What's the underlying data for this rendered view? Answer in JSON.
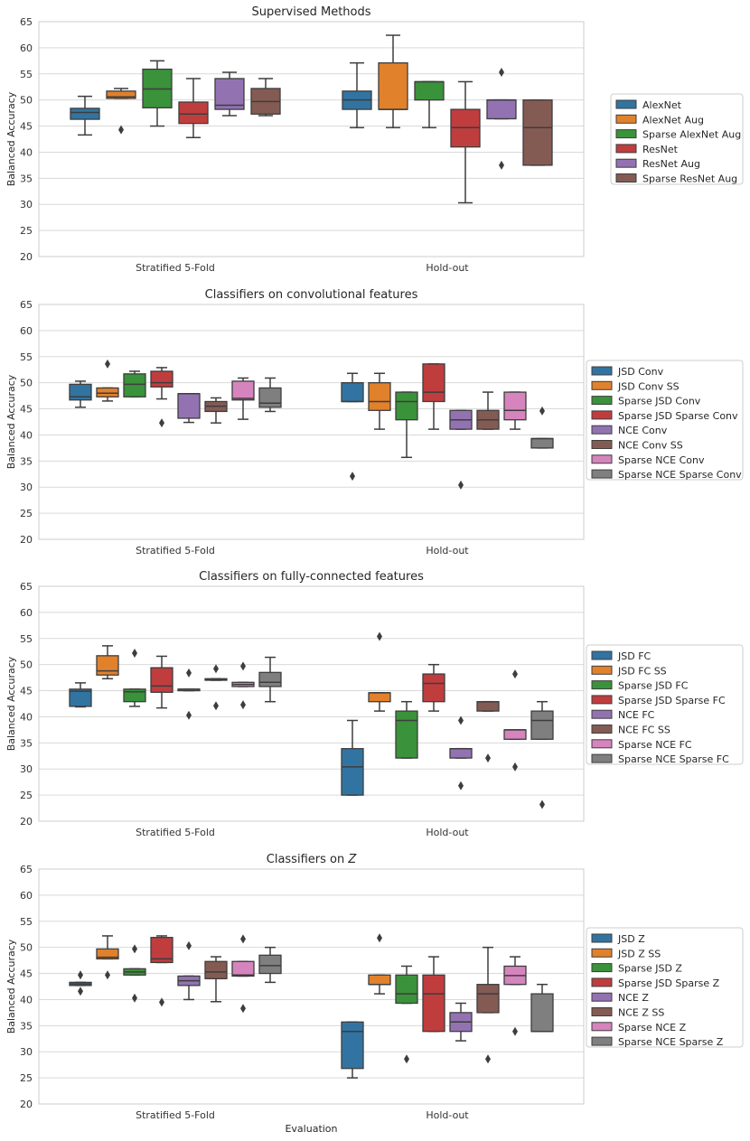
{
  "colors": {
    "blue": "#3274a1",
    "orange": "#e1812c",
    "green": "#3a923a",
    "red": "#c03d3e",
    "purple": "#9372b2",
    "brown": "#845b53",
    "pink": "#d684bd",
    "gray": "#7f7f7f"
  },
  "chart_data": [
    {
      "type": "box",
      "title": "Supervised Methods",
      "ylabel": "Balanced Accuracy",
      "xlabel": "",
      "ylim": [
        20,
        65
      ],
      "yticks": [
        20,
        25,
        30,
        35,
        40,
        45,
        50,
        55,
        60,
        65
      ],
      "categories": [
        "Stratified 5-Fold",
        "Hold-out"
      ],
      "series": [
        {
          "name": "AlexNet",
          "color": "blue",
          "boxes": [
            {
              "q1": 46.3,
              "med": 47.6,
              "q3": 48.4,
              "lo": 43.3,
              "hi": 50.7,
              "fliers": []
            },
            {
              "q1": 48.2,
              "med": 50.0,
              "q3": 51.7,
              "lo": 44.7,
              "hi": 57.1,
              "fliers": []
            }
          ]
        },
        {
          "name": "AlexNet Aug",
          "color": "orange",
          "boxes": [
            {
              "q1": 50.3,
              "med": 50.6,
              "q3": 51.7,
              "lo": 50.3,
              "hi": 52.2,
              "fliers": [
                44.3
              ]
            },
            {
              "q1": 48.2,
              "med": 48.2,
              "q3": 57.1,
              "lo": 44.7,
              "hi": 62.4,
              "fliers": []
            }
          ]
        },
        {
          "name": "Sparse AlexNet Aug",
          "color": "green",
          "boxes": [
            {
              "q1": 48.5,
              "med": 52.1,
              "q3": 55.9,
              "lo": 45.0,
              "hi": 57.5,
              "fliers": []
            },
            {
              "q1": 50.0,
              "med": 53.5,
              "q3": 53.5,
              "lo": 44.7,
              "hi": 53.5,
              "fliers": []
            }
          ]
        },
        {
          "name": "ResNet",
          "color": "red",
          "boxes": [
            {
              "q1": 45.5,
              "med": 47.3,
              "q3": 49.6,
              "lo": 42.8,
              "hi": 54.1,
              "fliers": []
            },
            {
              "q1": 41.0,
              "med": 44.7,
              "q3": 48.2,
              "lo": 30.3,
              "hi": 53.5,
              "fliers": []
            }
          ]
        },
        {
          "name": "ResNet Aug",
          "color": "purple",
          "boxes": [
            {
              "q1": 48.2,
              "med": 49.0,
              "q3": 54.1,
              "lo": 47.0,
              "hi": 55.3,
              "fliers": []
            },
            {
              "q1": 46.4,
              "med": 50.0,
              "q3": 50.0,
              "lo": 46.4,
              "hi": 50.0,
              "fliers": [
                55.3,
                37.5
              ]
            }
          ]
        },
        {
          "name": "Sparse ResNet Aug",
          "color": "brown",
          "boxes": [
            {
              "q1": 47.3,
              "med": 49.7,
              "q3": 52.2,
              "lo": 47.0,
              "hi": 54.1,
              "fliers": []
            },
            {
              "q1": 37.5,
              "med": 44.7,
              "q3": 50.0,
              "lo": 37.5,
              "hi": 50.0,
              "fliers": []
            }
          ]
        }
      ]
    },
    {
      "type": "box",
      "title": "Classifiers on convolutional features",
      "ylabel": "Balanced Accuracy",
      "xlabel": "",
      "ylim": [
        20,
        65
      ],
      "yticks": [
        20,
        25,
        30,
        35,
        40,
        45,
        50,
        55,
        60,
        65
      ],
      "categories": [
        "Stratified 5-Fold",
        "Hold-out"
      ],
      "series": [
        {
          "name": "JSD Conv",
          "color": "blue",
          "boxes": [
            {
              "q1": 46.7,
              "med": 47.3,
              "q3": 49.7,
              "lo": 45.3,
              "hi": 50.3,
              "fliers": []
            },
            {
              "q1": 46.4,
              "med": 46.4,
              "q3": 50.0,
              "lo": 46.4,
              "hi": 51.8,
              "fliers": [
                32.1
              ]
            }
          ]
        },
        {
          "name": "JSD Conv SS",
          "color": "orange",
          "boxes": [
            {
              "q1": 47.3,
              "med": 48.0,
              "q3": 49.0,
              "lo": 46.5,
              "hi": 49.0,
              "fliers": [
                53.6
              ]
            },
            {
              "q1": 44.7,
              "med": 46.4,
              "q3": 50.0,
              "lo": 41.1,
              "hi": 51.8,
              "fliers": []
            }
          ]
        },
        {
          "name": "Sparse JSD Conv",
          "color": "green",
          "boxes": [
            {
              "q1": 47.3,
              "med": 49.7,
              "q3": 51.7,
              "lo": 47.3,
              "hi": 52.2,
              "fliers": []
            },
            {
              "q1": 42.9,
              "med": 46.4,
              "q3": 48.2,
              "lo": 35.7,
              "hi": 48.2,
              "fliers": []
            }
          ]
        },
        {
          "name": "Sparse JSD Sparse Conv",
          "color": "red",
          "boxes": [
            {
              "q1": 49.2,
              "med": 50.0,
              "q3": 52.2,
              "lo": 46.9,
              "hi": 52.9,
              "fliers": [
                42.3
              ]
            },
            {
              "q1": 46.4,
              "med": 48.2,
              "q3": 53.6,
              "lo": 41.1,
              "hi": 53.6,
              "fliers": []
            }
          ]
        },
        {
          "name": "NCE Conv",
          "color": "purple",
          "boxes": [
            {
              "q1": 43.2,
              "med": 47.9,
              "q3": 47.9,
              "lo": 42.4,
              "hi": 47.9,
              "fliers": []
            },
            {
              "q1": 41.1,
              "med": 42.9,
              "q3": 44.7,
              "lo": 41.1,
              "hi": 44.7,
              "fliers": [
                30.4
              ]
            }
          ]
        },
        {
          "name": "NCE Conv SS",
          "color": "brown",
          "boxes": [
            {
              "q1": 44.5,
              "med": 45.5,
              "q3": 46.4,
              "lo": 42.3,
              "hi": 47.1,
              "fliers": []
            },
            {
              "q1": 41.1,
              "med": 42.9,
              "q3": 44.7,
              "lo": 41.1,
              "hi": 48.2,
              "fliers": []
            }
          ]
        },
        {
          "name": "Sparse NCE Conv",
          "color": "pink",
          "boxes": [
            {
              "q1": 46.7,
              "med": 47.0,
              "q3": 50.3,
              "lo": 43.0,
              "hi": 50.9,
              "fliers": []
            },
            {
              "q1": 42.9,
              "med": 44.7,
              "q3": 48.2,
              "lo": 41.1,
              "hi": 48.2,
              "fliers": []
            }
          ]
        },
        {
          "name": "Sparse NCE Sparse Conv",
          "color": "gray",
          "boxes": [
            {
              "q1": 45.3,
              "med": 46.1,
              "q3": 49.0,
              "lo": 44.5,
              "hi": 50.9,
              "fliers": []
            },
            {
              "q1": 37.5,
              "med": 39.3,
              "q3": 39.3,
              "lo": 37.5,
              "hi": 39.3,
              "fliers": [
                44.6
              ]
            }
          ]
        }
      ]
    },
    {
      "type": "box",
      "title": "Classifiers on fully-connected features",
      "ylabel": "Balanced Accuracy",
      "xlabel": "",
      "ylim": [
        20,
        65
      ],
      "yticks": [
        20,
        25,
        30,
        35,
        40,
        45,
        50,
        55,
        60,
        65
      ],
      "categories": [
        "Stratified 5-Fold",
        "Hold-out"
      ],
      "series": [
        {
          "name": "JSD FC",
          "color": "blue",
          "boxes": [
            {
              "q1": 42.0,
              "med": 44.9,
              "q3": 45.3,
              "lo": 41.9,
              "hi": 46.5,
              "fliers": []
            },
            {
              "q1": 25.0,
              "med": 30.4,
              "q3": 33.9,
              "lo": 25.0,
              "hi": 39.3,
              "fliers": []
            }
          ]
        },
        {
          "name": "JSD FC SS",
          "color": "orange",
          "boxes": [
            {
              "q1": 48.0,
              "med": 48.8,
              "q3": 51.7,
              "lo": 47.3,
              "hi": 53.6,
              "fliers": []
            },
            {
              "q1": 42.9,
              "med": 44.6,
              "q3": 44.6,
              "lo": 41.1,
              "hi": 44.6,
              "fliers": [
                55.4
              ]
            }
          ]
        },
        {
          "name": "Sparse JSD FC",
          "color": "green",
          "boxes": [
            {
              "q1": 42.9,
              "med": 44.8,
              "q3": 45.3,
              "lo": 42.0,
              "hi": 45.3,
              "fliers": [
                52.2
              ]
            },
            {
              "q1": 32.1,
              "med": 39.3,
              "q3": 41.1,
              "lo": 32.1,
              "hi": 42.9,
              "fliers": []
            }
          ]
        },
        {
          "name": "Sparse JSD Sparse FC",
          "color": "red",
          "boxes": [
            {
              "q1": 44.7,
              "med": 45.9,
              "q3": 49.4,
              "lo": 41.7,
              "hi": 51.6,
              "fliers": []
            },
            {
              "q1": 42.9,
              "med": 46.4,
              "q3": 48.2,
              "lo": 41.1,
              "hi": 50.0,
              "fliers": []
            }
          ]
        },
        {
          "name": "NCE FC",
          "color": "purple",
          "boxes": [
            {
              "q1": 45.0,
              "med": 45.3,
              "q3": 45.3,
              "lo": 45.0,
              "hi": 45.3,
              "fliers": [
                48.4,
                40.3
              ]
            },
            {
              "q1": 32.1,
              "med": 33.9,
              "q3": 33.9,
              "lo": 32.1,
              "hi": 33.9,
              "fliers": [
                39.3,
                26.8
              ]
            }
          ]
        },
        {
          "name": "NCE FC SS",
          "color": "brown",
          "boxes": [
            {
              "q1": 47.0,
              "med": 47.1,
              "q3": 47.3,
              "lo": 47.0,
              "hi": 47.3,
              "fliers": [
                49.2,
                42.1
              ]
            },
            {
              "q1": 41.1,
              "med": 42.9,
              "q3": 42.9,
              "lo": 41.1,
              "hi": 42.9,
              "fliers": [
                32.1
              ]
            }
          ]
        },
        {
          "name": "Sparse NCE FC",
          "color": "pink",
          "boxes": [
            {
              "q1": 45.8,
              "med": 46.2,
              "q3": 46.6,
              "lo": 45.8,
              "hi": 46.6,
              "fliers": [
                49.7,
                42.3
              ]
            },
            {
              "q1": 35.7,
              "med": 37.5,
              "q3": 37.5,
              "lo": 35.7,
              "hi": 37.5,
              "fliers": [
                48.2,
                30.4
              ]
            }
          ]
        },
        {
          "name": "Sparse NCE Sparse FC",
          "color": "gray",
          "boxes": [
            {
              "q1": 45.8,
              "med": 46.6,
              "q3": 48.5,
              "lo": 42.9,
              "hi": 51.4,
              "fliers": []
            },
            {
              "q1": 35.7,
              "med": 39.3,
              "q3": 41.1,
              "lo": 35.7,
              "hi": 42.9,
              "fliers": [
                23.2
              ]
            }
          ]
        }
      ]
    },
    {
      "type": "box",
      "title": "Classifiers on ",
      "title_italic": "Z",
      "ylabel": "Balanced Accuracy",
      "xlabel": "Evaluation",
      "ylim": [
        20,
        65
      ],
      "yticks": [
        20,
        25,
        30,
        35,
        40,
        45,
        50,
        55,
        60,
        65
      ],
      "categories": [
        "Stratified 5-Fold",
        "Hold-out"
      ],
      "series": [
        {
          "name": "JSD Z",
          "color": "blue",
          "boxes": [
            {
              "q1": 42.7,
              "med": 43.0,
              "q3": 43.3,
              "lo": 42.7,
              "hi": 43.3,
              "fliers": [
                44.7,
                41.6
              ]
            },
            {
              "q1": 26.8,
              "med": 33.9,
              "q3": 35.7,
              "lo": 25.0,
              "hi": 35.7,
              "fliers": []
            }
          ]
        },
        {
          "name": "JSD Z SS",
          "color": "orange",
          "boxes": [
            {
              "q1": 47.8,
              "med": 48.1,
              "q3": 49.7,
              "lo": 47.8,
              "hi": 52.2,
              "fliers": [
                44.7
              ]
            },
            {
              "q1": 42.9,
              "med": 42.9,
              "q3": 44.7,
              "lo": 41.1,
              "hi": 44.7,
              "fliers": [
                51.8
              ]
            }
          ]
        },
        {
          "name": "Sparse JSD Z",
          "color": "green",
          "boxes": [
            {
              "q1": 44.7,
              "med": 45.3,
              "q3": 45.9,
              "lo": 44.7,
              "hi": 45.9,
              "fliers": [
                49.7,
                40.3
              ]
            },
            {
              "q1": 39.3,
              "med": 41.1,
              "q3": 44.7,
              "lo": 39.3,
              "hi": 46.4,
              "fliers": [
                28.6
              ]
            }
          ]
        },
        {
          "name": "Sparse JSD Sparse Z",
          "color": "red",
          "boxes": [
            {
              "q1": 47.1,
              "med": 47.8,
              "q3": 51.9,
              "lo": 47.1,
              "hi": 52.2,
              "fliers": [
                39.5
              ]
            },
            {
              "q1": 33.9,
              "med": 41.1,
              "q3": 44.7,
              "lo": 33.9,
              "hi": 48.2,
              "fliers": []
            }
          ]
        },
        {
          "name": "NCE Z",
          "color": "purple",
          "boxes": [
            {
              "q1": 42.7,
              "med": 43.6,
              "q3": 44.5,
              "lo": 40.0,
              "hi": 44.5,
              "fliers": [
                50.3
              ]
            },
            {
              "q1": 33.9,
              "med": 35.7,
              "q3": 37.5,
              "lo": 32.1,
              "hi": 39.3,
              "fliers": []
            }
          ]
        },
        {
          "name": "NCE Z SS",
          "color": "brown",
          "boxes": [
            {
              "q1": 44.0,
              "med": 45.3,
              "q3": 47.3,
              "lo": 39.6,
              "hi": 48.2,
              "fliers": []
            },
            {
              "q1": 37.5,
              "med": 41.1,
              "q3": 42.9,
              "lo": 37.5,
              "hi": 50.0,
              "fliers": [
                28.6
              ]
            }
          ]
        },
        {
          "name": "Sparse NCE Z",
          "color": "pink",
          "boxes": [
            {
              "q1": 44.5,
              "med": 44.7,
              "q3": 47.3,
              "lo": 44.5,
              "hi": 47.3,
              "fliers": [
                51.6,
                38.3
              ]
            },
            {
              "q1": 42.9,
              "med": 44.6,
              "q3": 46.4,
              "lo": 42.9,
              "hi": 48.2,
              "fliers": [
                33.9
              ]
            }
          ]
        },
        {
          "name": "Sparse NCE Sparse Z",
          "color": "gray",
          "boxes": [
            {
              "q1": 45.0,
              "med": 46.5,
              "q3": 48.5,
              "lo": 43.3,
              "hi": 50.0,
              "fliers": []
            },
            {
              "q1": 33.9,
              "med": 33.9,
              "q3": 41.1,
              "lo": 33.9,
              "hi": 42.9,
              "fliers": []
            }
          ]
        }
      ]
    }
  ]
}
